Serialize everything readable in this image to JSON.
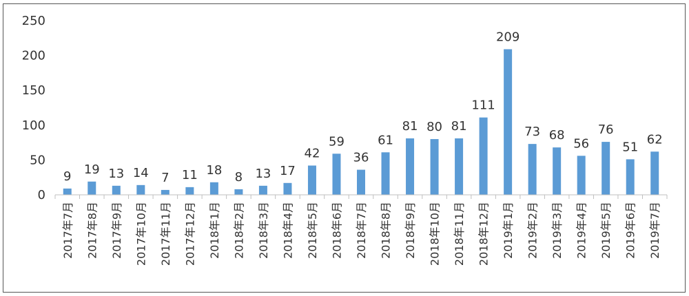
{
  "chart_data": {
    "type": "bar",
    "title": "",
    "xlabel": "",
    "ylabel": "",
    "ylim": [
      0,
      250
    ],
    "yticks": [
      0,
      50,
      100,
      150,
      200,
      250
    ],
    "grid": false,
    "legend": "none",
    "bar_color": "#5B9BD5",
    "categories": [
      "2017年7月",
      "2017年8月",
      "2017年9月",
      "2017年10月",
      "2017年11月",
      "2017年12月",
      "2018年1月",
      "2018年2月",
      "2018年3月",
      "2018年4月",
      "2018年5月",
      "2018年6月",
      "2018年7月",
      "2018年8月",
      "2018年9月",
      "2018年10月",
      "2018年11月",
      "2018年12月",
      "2019年1月",
      "2019年2月",
      "2019年3月",
      "2019年4月",
      "2019年5月",
      "2019年6月",
      "2019年7月"
    ],
    "values": [
      9,
      19,
      13,
      14,
      7,
      11,
      18,
      8,
      13,
      17,
      42,
      59,
      36,
      61,
      81,
      80,
      81,
      111,
      209,
      73,
      68,
      56,
      76,
      51,
      62
    ]
  }
}
